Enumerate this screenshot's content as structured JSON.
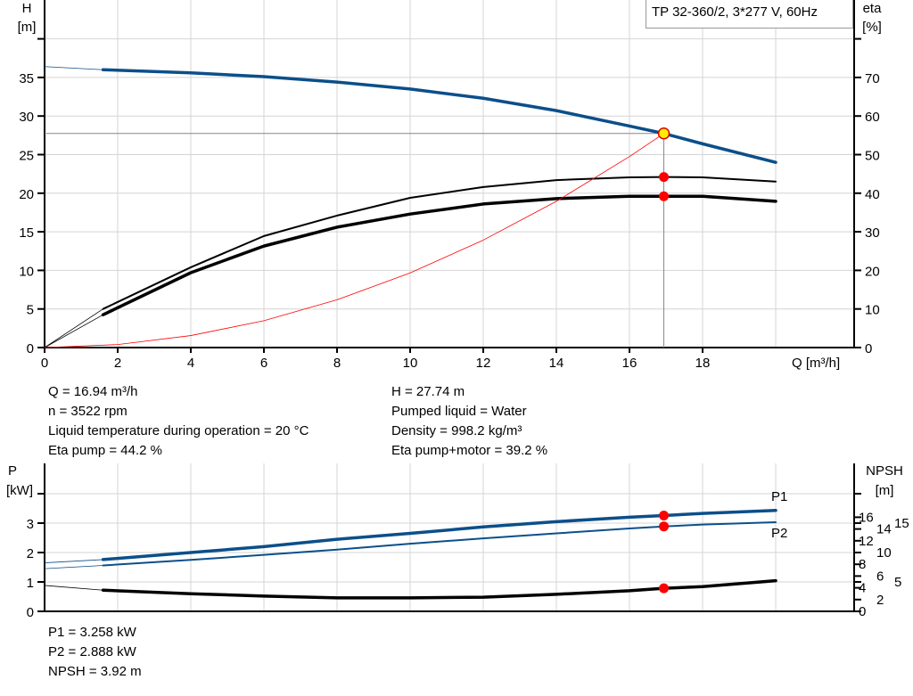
{
  "chart_data": [
    {
      "type": "line",
      "title": "TP 32-360/2, 3*277 V, 60Hz",
      "xlabel": "Q [m³/h]",
      "ylabel": "H\n[m]",
      "ylabel_left_lines": [
        "H",
        "[m]"
      ],
      "ylabel_right_lines": [
        "eta",
        "[%]"
      ],
      "xlim": [
        0,
        22
      ],
      "ylim": [
        0,
        45
      ],
      "y2lim": [
        0,
        90
      ],
      "xticks": [
        0,
        2,
        4,
        6,
        8,
        10,
        12,
        14,
        16,
        18
      ],
      "yticks": [
        0,
        5,
        10,
        15,
        20,
        25,
        30,
        35
      ],
      "y2ticks": [
        0,
        10,
        20,
        30,
        40,
        50,
        60,
        70
      ],
      "grid": true,
      "series": [
        {
          "id": "head",
          "axis": "left",
          "color": "#0b4f8a",
          "x": [
            0,
            1.6,
            4,
            6,
            8,
            10,
            12,
            14,
            16,
            16.94,
            18,
            20
          ],
          "y": [
            36.4,
            36.0,
            35.6,
            35.1,
            34.4,
            33.5,
            32.3,
            30.7,
            28.7,
            27.74,
            26.4,
            24.0
          ]
        },
        {
          "id": "eta-pump",
          "axis": "right",
          "color": "#000000",
          "x": [
            0,
            1.6,
            4,
            6,
            8,
            10,
            12,
            14,
            16,
            16.94,
            18,
            20
          ],
          "y": [
            0,
            10.0,
            20.8,
            28.9,
            34.2,
            38.8,
            41.6,
            43.4,
            44.1,
            44.2,
            44.1,
            43.0
          ]
        },
        {
          "id": "eta-pump-motor",
          "axis": "right",
          "color": "#000000",
          "x": [
            0,
            1.6,
            4,
            6,
            8,
            10,
            12,
            14,
            16,
            16.94,
            18,
            20
          ],
          "y": [
            0,
            8.5,
            19.4,
            26.3,
            31.2,
            34.6,
            37.2,
            38.6,
            39.2,
            39.2,
            39.2,
            37.9
          ]
        },
        {
          "id": "system-curve",
          "axis": "left",
          "color": "#ff0000",
          "x": [
            0,
            2,
            4,
            6,
            8,
            10,
            12,
            14,
            16,
            16.94
          ],
          "y": [
            0,
            0.39,
            1.55,
            3.48,
            6.19,
            9.67,
            13.92,
            18.95,
            24.75,
            27.74
          ]
        }
      ],
      "operating_point": {
        "q": 16.94,
        "h": 27.74,
        "eta_pump": 44.2,
        "eta_pump_motor": 39.2
      }
    },
    {
      "type": "line",
      "ylabel_left_lines": [
        "P",
        "[kW]"
      ],
      "ylabel_right_lines": [
        "NPSH",
        "[m]"
      ],
      "xlim": [
        0,
        22
      ],
      "ylim": [
        0,
        5
      ],
      "y2lim": [
        0,
        25
      ],
      "yticks": [
        0,
        1,
        2,
        3
      ],
      "y2ticks": [
        0,
        2,
        4,
        5,
        6,
        8,
        10,
        12,
        14,
        15,
        16
      ],
      "grid": true,
      "series": [
        {
          "id": "p1",
          "name": "P1",
          "axis": "left",
          "color": "#0b4f8a",
          "x": [
            0,
            1.6,
            4,
            6,
            8,
            10,
            12,
            14,
            16,
            16.94,
            18,
            20
          ],
          "y": [
            1.65,
            1.76,
            2.0,
            2.2,
            2.45,
            2.65,
            2.87,
            3.05,
            3.2,
            3.258,
            3.33,
            3.43
          ]
        },
        {
          "id": "p2",
          "name": "P2",
          "axis": "left",
          "color": "#0b4f8a",
          "x": [
            0,
            1.6,
            4,
            6,
            8,
            10,
            12,
            14,
            16,
            16.94,
            18,
            20
          ],
          "y": [
            1.45,
            1.56,
            1.75,
            1.92,
            2.1,
            2.3,
            2.48,
            2.65,
            2.82,
            2.888,
            2.95,
            3.03
          ]
        },
        {
          "id": "npsh",
          "axis": "right",
          "color": "#000000",
          "x": [
            0,
            1.6,
            4,
            6,
            8,
            10,
            12,
            14,
            16,
            16.94,
            18,
            20
          ],
          "y": [
            4.4,
            3.6,
            3.0,
            2.6,
            2.3,
            2.3,
            2.4,
            2.9,
            3.5,
            3.92,
            4.2,
            5.2
          ]
        }
      ]
    }
  ],
  "info_top_left": [
    "Q = 16.94 m³/h",
    "n = 3522 rpm",
    "Liquid temperature during operation = 20 °C",
    "Eta pump = 44.2 %"
  ],
  "info_top_right": [
    "H = 27.74 m",
    "Pumped liquid = Water",
    "Density = 998.2 kg/m³",
    "Eta pump+motor = 39.2 %"
  ],
  "info_bottom": [
    "P1 = 3.258 kW",
    "P2 = 2.888 kW",
    "NPSH = 3.92 m"
  ]
}
